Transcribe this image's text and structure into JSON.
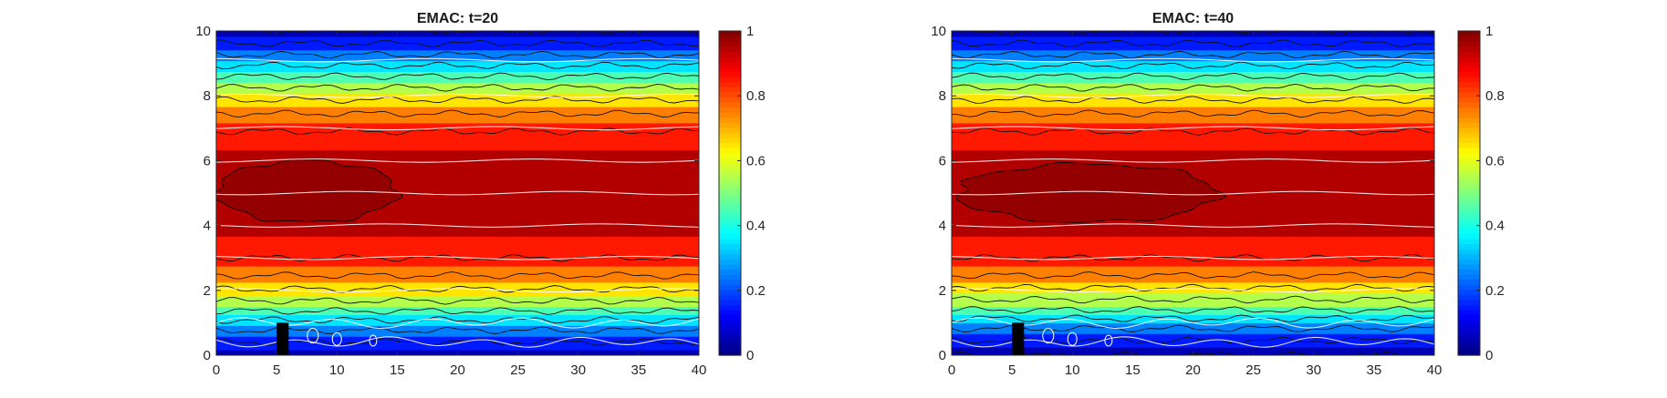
{
  "chart_data": [
    {
      "type": "heatmap",
      "title": "EMAC: t=20",
      "xlim": [
        0,
        40
      ],
      "ylim": [
        0,
        10
      ],
      "xticks": [
        0,
        5,
        10,
        15,
        20,
        25,
        30,
        35,
        40
      ],
      "yticks": [
        0,
        2,
        4,
        6,
        8,
        10
      ],
      "colorbar": {
        "colormap": "jet",
        "limits": [
          0,
          1
        ],
        "ticks": [
          0,
          0.2,
          0.4,
          0.6,
          0.8,
          1
        ],
        "tick_labels": [
          "0",
          "0.2",
          "0.4",
          "0.6",
          "0.8",
          "1"
        ]
      },
      "contour_levels": [
        0.05,
        0.15,
        0.25,
        0.35,
        0.45,
        0.55,
        0.65,
        0.75,
        0.85,
        0.95
      ],
      "field_profile": {
        "y": [
          0,
          0.5,
          1.0,
          1.5,
          2.0,
          2.5,
          3.0,
          3.5,
          4.0,
          5.0,
          6.0,
          6.5,
          7.0,
          7.5,
          8.0,
          8.5,
          9.0,
          9.5,
          10
        ],
        "value": [
          0.06,
          0.17,
          0.32,
          0.5,
          0.64,
          0.76,
          0.85,
          0.89,
          0.92,
          0.93,
          0.92,
          0.89,
          0.84,
          0.74,
          0.62,
          0.48,
          0.33,
          0.18,
          0.05
        ]
      },
      "dark_red_region": {
        "value_above": 0.95,
        "x_range": [
          0,
          15
        ],
        "y_range": [
          4.1,
          6.0
        ]
      },
      "obstacle": {
        "x_range": [
          5,
          6
        ],
        "y_range": [
          0,
          1
        ]
      },
      "streamlines_color": "#ffffff"
    },
    {
      "type": "heatmap",
      "title": "EMAC: t=40",
      "xlim": [
        0,
        40
      ],
      "ylim": [
        0,
        10
      ],
      "xticks": [
        0,
        5,
        10,
        15,
        20,
        25,
        30,
        35,
        40
      ],
      "yticks": [
        0,
        2,
        4,
        6,
        8,
        10
      ],
      "colorbar": {
        "colormap": "jet",
        "limits": [
          0,
          1
        ],
        "ticks": [
          0,
          0.2,
          0.4,
          0.6,
          0.8,
          1
        ],
        "tick_labels": [
          "0",
          "0.2",
          "0.4",
          "0.6",
          "0.8",
          "1"
        ]
      },
      "contour_levels": [
        0.05,
        0.15,
        0.25,
        0.35,
        0.45,
        0.55,
        0.65,
        0.75,
        0.85,
        0.95
      ],
      "field_profile": {
        "y": [
          0,
          0.5,
          1.0,
          1.5,
          2.0,
          2.5,
          3.0,
          3.5,
          4.0,
          5.0,
          6.0,
          6.5,
          7.0,
          7.5,
          8.0,
          8.5,
          9.0,
          9.5,
          10
        ],
        "value": [
          0.05,
          0.16,
          0.3,
          0.49,
          0.63,
          0.76,
          0.85,
          0.89,
          0.92,
          0.93,
          0.92,
          0.89,
          0.84,
          0.74,
          0.62,
          0.48,
          0.33,
          0.18,
          0.05
        ]
      },
      "dark_red_region": {
        "value_above": 0.95,
        "x_range": [
          0.5,
          22
        ],
        "y_range": [
          4.1,
          5.9
        ]
      },
      "obstacle": {
        "x_range": [
          5,
          6
        ],
        "y_range": [
          0,
          1
        ]
      },
      "streamlines_color": "#ffffff"
    }
  ]
}
